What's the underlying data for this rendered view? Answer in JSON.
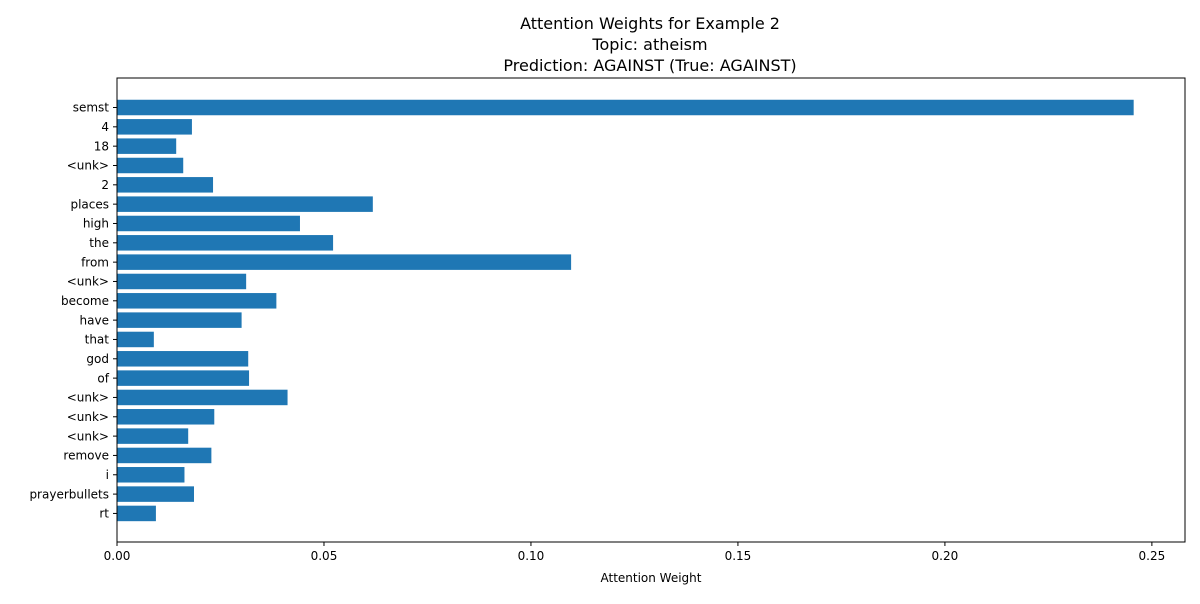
{
  "chart_data": {
    "type": "bar",
    "orientation": "horizontal",
    "title_lines": [
      "Attention Weights for Example 2",
      "Topic: atheism",
      "Prediction: AGAINST (True: AGAINST)"
    ],
    "xlabel": "Attention Weight",
    "ylabel": "",
    "xlim": [
      0,
      0.258
    ],
    "xticks": [
      "0.00",
      "0.05",
      "0.10",
      "0.15",
      "0.20",
      "0.25"
    ],
    "xtick_values": [
      0,
      0.05,
      0.1,
      0.15,
      0.2,
      0.25
    ],
    "grid": false,
    "bar_color": "#1f77b4",
    "categories_top_to_bottom": [
      "semst",
      "4",
      "18",
      "<unk>",
      "2",
      "places",
      "high",
      "the",
      "from",
      "<unk>",
      "become",
      "have",
      "that",
      "god",
      "of",
      "<unk>",
      "<unk>",
      "<unk>",
      "remove",
      "i",
      "prayerbullets",
      "rt"
    ],
    "values_top_to_bottom": [
      0.2456,
      0.0181,
      0.0143,
      0.016,
      0.0232,
      0.0618,
      0.0442,
      0.0522,
      0.1097,
      0.0312,
      0.0385,
      0.0301,
      0.0089,
      0.0317,
      0.0319,
      0.0412,
      0.0235,
      0.0172,
      0.0228,
      0.0163,
      0.0186,
      0.0094
    ]
  }
}
